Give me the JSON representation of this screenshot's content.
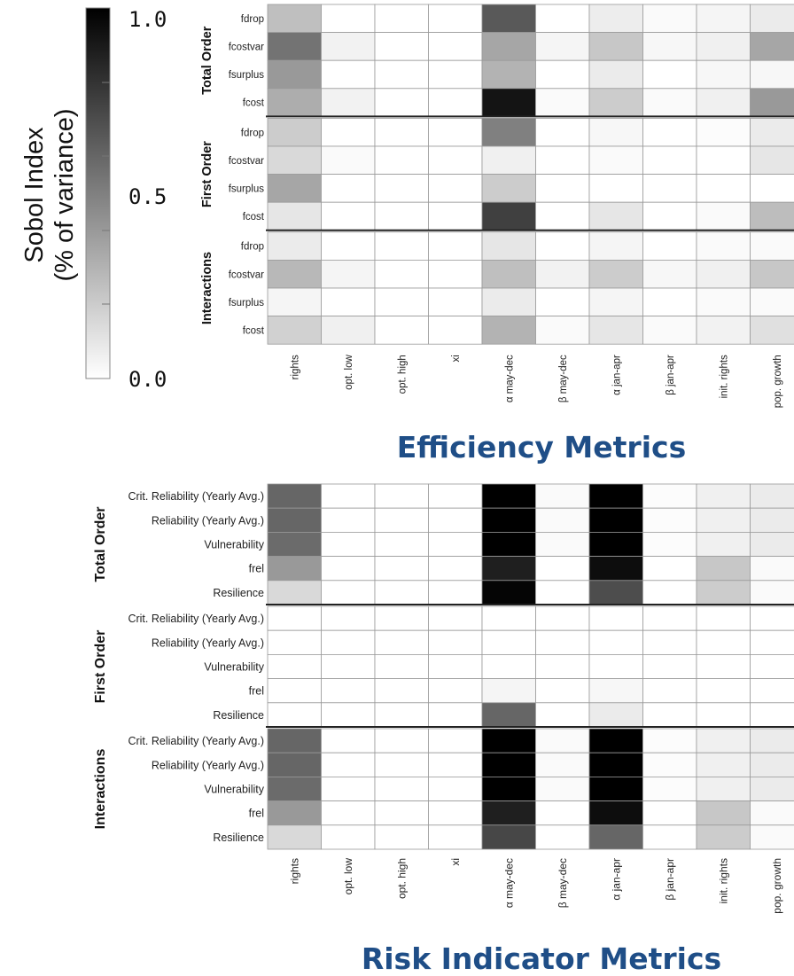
{
  "colorbar": {
    "label_line1": "Sobol Index",
    "label_line2": "(% of variance)",
    "tick_top": "1.0",
    "tick_mid": "0.5",
    "tick_bottom": "0.0",
    "range": [
      0,
      1
    ],
    "color_low": "#ffffff",
    "color_high": "#000000"
  },
  "colors": {
    "title": "#1f4e87",
    "grid": "#9a9a9a"
  },
  "chart_data": [
    {
      "type": "heatmap",
      "title": "Efficiency Metrics",
      "columns": [
        "rights",
        "opt. low",
        "opt. high",
        "xi",
        "α may-dec",
        "β may-dec",
        "α jan-apr",
        "β jan-apr",
        "init. rights",
        "pop. growth"
      ],
      "groups": [
        {
          "name": "Total Order",
          "rows": [
            "fdrop",
            "fcostvar",
            "fsurplus",
            "fcost"
          ],
          "values": [
            [
              0.25,
              0,
              0,
              0,
              0.65,
              0,
              0.07,
              0.02,
              0.04,
              0.08
            ],
            [
              0.55,
              0.05,
              0,
              0,
              0.35,
              0.04,
              0.22,
              0.03,
              0.06,
              0.35
            ],
            [
              0.4,
              0,
              0,
              0,
              0.3,
              0,
              0.08,
              0,
              0.03,
              0.03
            ],
            [
              0.32,
              0.05,
              0,
              0,
              0.92,
              0.02,
              0.2,
              0.02,
              0.06,
              0.4
            ]
          ]
        },
        {
          "name": "First Order",
          "rows": [
            "fdrop",
            "fcostvar",
            "fsurplus",
            "fcost"
          ],
          "values": [
            [
              0.2,
              0,
              0,
              0,
              0.5,
              0,
              0.03,
              0,
              0.01,
              0.08
            ],
            [
              0.15,
              0.02,
              0,
              0,
              0.06,
              0,
              0.02,
              0,
              0,
              0.1
            ],
            [
              0.35,
              0,
              0,
              0,
              0.2,
              0,
              0,
              0,
              0,
              0
            ],
            [
              0.1,
              0,
              0,
              0,
              0.75,
              0,
              0.1,
              0,
              0.02,
              0.26
            ]
          ]
        },
        {
          "name": "Interactions",
          "rows": [
            "fdrop",
            "fcostvar",
            "fsurplus",
            "fcost"
          ],
          "values": [
            [
              0.08,
              0,
              0,
              0,
              0.1,
              0,
              0.04,
              0,
              0.02,
              0.02
            ],
            [
              0.28,
              0.04,
              0,
              0,
              0.25,
              0.05,
              0.2,
              0.03,
              0.06,
              0.22
            ],
            [
              0.04,
              0,
              0,
              0,
              0.08,
              0,
              0.04,
              0,
              0.02,
              0.02
            ],
            [
              0.18,
              0.06,
              0,
              0,
              0.3,
              0.02,
              0.1,
              0.02,
              0.05,
              0.12
            ]
          ]
        }
      ]
    },
    {
      "type": "heatmap",
      "title": "Risk Indicator Metrics",
      "columns": [
        "rights",
        "opt. low",
        "opt. high",
        "xi",
        "α may-dec",
        "β may-dec",
        "α jan-apr",
        "β jan-apr",
        "init. rights",
        "pop. growth"
      ],
      "groups": [
        {
          "name": "Total Order",
          "rows": [
            "Crit. Reliability (Yearly Avg.)",
            "Reliability (Yearly Avg.)",
            "Vulnerability",
            "frel",
            "Resilience"
          ],
          "values": [
            [
              0.6,
              0,
              0,
              0,
              1.0,
              0.02,
              1.0,
              0.01,
              0.06,
              0.08
            ],
            [
              0.6,
              0,
              0,
              0,
              1.0,
              0.02,
              1.0,
              0.01,
              0.06,
              0.08
            ],
            [
              0.58,
              0,
              0,
              0,
              1.0,
              0.02,
              1.0,
              0.01,
              0.06,
              0.08
            ],
            [
              0.4,
              0,
              0,
              0,
              0.88,
              0,
              0.95,
              0,
              0.22,
              0.02
            ],
            [
              0.15,
              0,
              0,
              0,
              0.98,
              0,
              0.7,
              0,
              0.2,
              0.02
            ]
          ]
        },
        {
          "name": "First Order",
          "rows": [
            "Crit. Reliability (Yearly Avg.)",
            "Reliability (Yearly Avg.)",
            "Vulnerability",
            "frel",
            "Resilience"
          ],
          "values": [
            [
              0,
              0,
              0,
              0,
              0,
              0,
              0,
              0,
              0,
              0
            ],
            [
              0,
              0,
              0,
              0,
              0,
              0,
              0,
              0,
              0,
              0
            ],
            [
              0,
              0,
              0,
              0,
              0,
              0,
              0,
              0,
              0,
              0
            ],
            [
              0,
              0,
              0,
              0,
              0.04,
              0,
              0.03,
              0,
              0,
              0
            ],
            [
              0,
              0,
              0,
              0,
              0.6,
              0,
              0.08,
              0,
              0,
              0
            ]
          ]
        },
        {
          "name": "Interactions",
          "rows": [
            "Crit. Reliability (Yearly Avg.)",
            "Reliability (Yearly Avg.)",
            "Vulnerability",
            "frel",
            "Resilience"
          ],
          "values": [
            [
              0.6,
              0,
              0,
              0,
              1.0,
              0.02,
              1.0,
              0.01,
              0.06,
              0.08
            ],
            [
              0.6,
              0,
              0,
              0,
              1.0,
              0.02,
              1.0,
              0.01,
              0.06,
              0.08
            ],
            [
              0.58,
              0,
              0,
              0,
              1.0,
              0.02,
              1.0,
              0.01,
              0.06,
              0.08
            ],
            [
              0.4,
              0,
              0,
              0,
              0.88,
              0,
              0.95,
              0,
              0.22,
              0.02
            ],
            [
              0.15,
              0,
              0,
              0,
              0.72,
              0,
              0.6,
              0,
              0.2,
              0.02
            ]
          ]
        }
      ]
    }
  ]
}
